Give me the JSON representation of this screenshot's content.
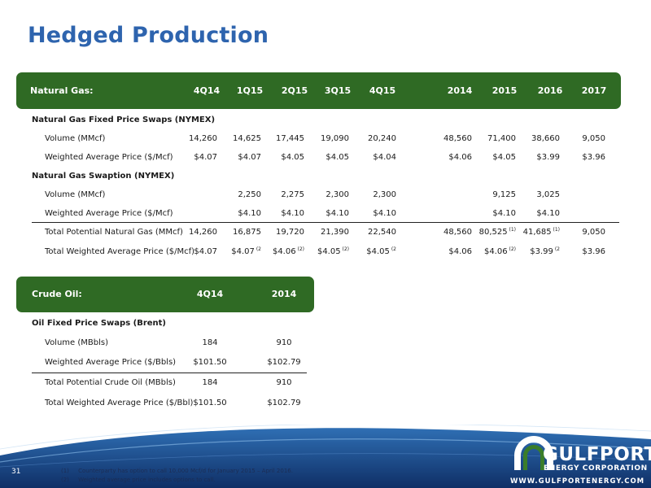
{
  "title": "Hedged Production",
  "gas": {
    "header_label": "Natural Gas:",
    "columns": [
      "4Q14",
      "1Q15",
      "2Q15",
      "3Q15",
      "4Q15",
      "2014",
      "2015",
      "2016",
      "2017"
    ],
    "sections": [
      {
        "title": "Natural Gas Fixed Price Swaps (NYMEX)",
        "rows": [
          {
            "label": "Volume (MMcf)",
            "values": [
              "14,260",
              "14,625",
              "17,445",
              "19,090",
              "20,240",
              "48,560",
              "71,400",
              "38,660",
              "9,050"
            ]
          },
          {
            "label": "Weighted Average Price ($/Mcf)",
            "values": [
              "$4.07",
              "$4.07",
              "$4.05",
              "$4.05",
              "$4.04",
              "$4.06",
              "$4.05",
              "$3.99",
              "$3.96"
            ]
          }
        ]
      },
      {
        "title": "Natural Gas Swaption (NYMEX)",
        "rows": [
          {
            "label": "Volume (MMcf)",
            "values": [
              "",
              "2,250",
              "2,275",
              "2,300",
              "2,300",
              "",
              "9,125",
              "3,025",
              ""
            ]
          },
          {
            "label": "Weighted Average Price ($/Mcf)",
            "values": [
              "",
              "$4.10",
              "$4.10",
              "$4.10",
              "$4.10",
              "",
              "$4.10",
              "$4.10",
              ""
            ]
          }
        ]
      }
    ],
    "totals": [
      {
        "label": "Total Potential Natural Gas (MMcf)",
        "values": [
          "14,260",
          "16,875",
          "19,720",
          "21,390",
          "22,540",
          "48,560",
          "80,525",
          "41,685",
          "9,050"
        ],
        "notes": [
          "",
          "",
          "",
          "",
          "",
          "",
          "(1)",
          "(1)",
          ""
        ]
      },
      {
        "label": "Total Weighted Average Price ($/Mcf)",
        "values": [
          "$4.07",
          "$4.07",
          "$4.06",
          "$4.05",
          "$4.05",
          "$4.06",
          "$4.06",
          "$3.99",
          "$3.96"
        ],
        "notes": [
          "",
          "(2",
          "(2)",
          "(2)",
          "(2",
          "",
          "(2)",
          "(2",
          ""
        ]
      }
    ]
  },
  "oil": {
    "header_label": "Crude Oil:",
    "columns": [
      "4Q14",
      "2014"
    ],
    "section_title": "Oil Fixed Price Swaps (Brent)",
    "rows": [
      {
        "label": "Volume (MBbls)",
        "values": [
          "184",
          "910"
        ]
      },
      {
        "label": "Weighted Average Price ($/Bbls)",
        "values": [
          "$101.50",
          "$102.79"
        ]
      }
    ],
    "totals": [
      {
        "label": "Total Potential Crude Oil (MBbls)",
        "values": [
          "184",
          "910"
        ]
      },
      {
        "label": "Total Weighted Average Price ($/Bbl)",
        "values": [
          "$101.50",
          "$102.79"
        ]
      }
    ]
  },
  "footnotes": [
    {
      "num": "(1)",
      "text": "Counterparty has option to call 10,000 Mcf/d for January 2015 – April 2016."
    },
    {
      "num": "(2)",
      "text": "Weighted average price includes options to call."
    }
  ],
  "page_number": "31",
  "logo": {
    "name": "GULFPORT",
    "subtitle": "ENERGY CORPORATION",
    "url": "WWW.GULFPORTENERGY.COM"
  },
  "colors": {
    "title_blue": "#2e64ae",
    "header_green": "#2f6a24",
    "footer_navy": "#123a78"
  }
}
